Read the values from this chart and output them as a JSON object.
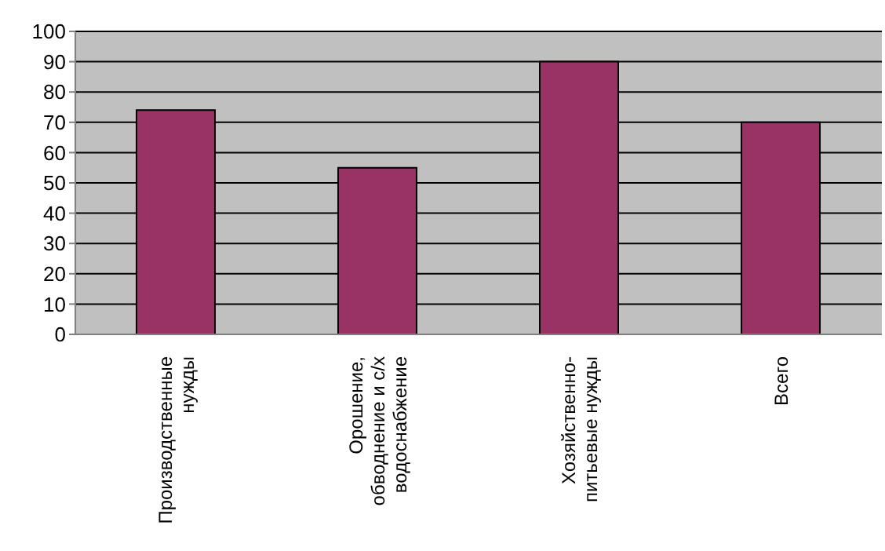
{
  "chart_data": {
    "type": "bar",
    "categories": [
      "Производственные нужды",
      "Орошение, обводнение и с/х водоснабжение",
      "Хозяйственно-питьевые нужды",
      "Всего"
    ],
    "values": [
      74,
      55,
      90,
      70
    ],
    "color": "#993366",
    "ylim": [
      0,
      100
    ],
    "yticks": [
      0,
      10,
      20,
      30,
      40,
      50,
      60,
      70,
      80,
      90,
      100
    ],
    "grid": "y"
  }
}
